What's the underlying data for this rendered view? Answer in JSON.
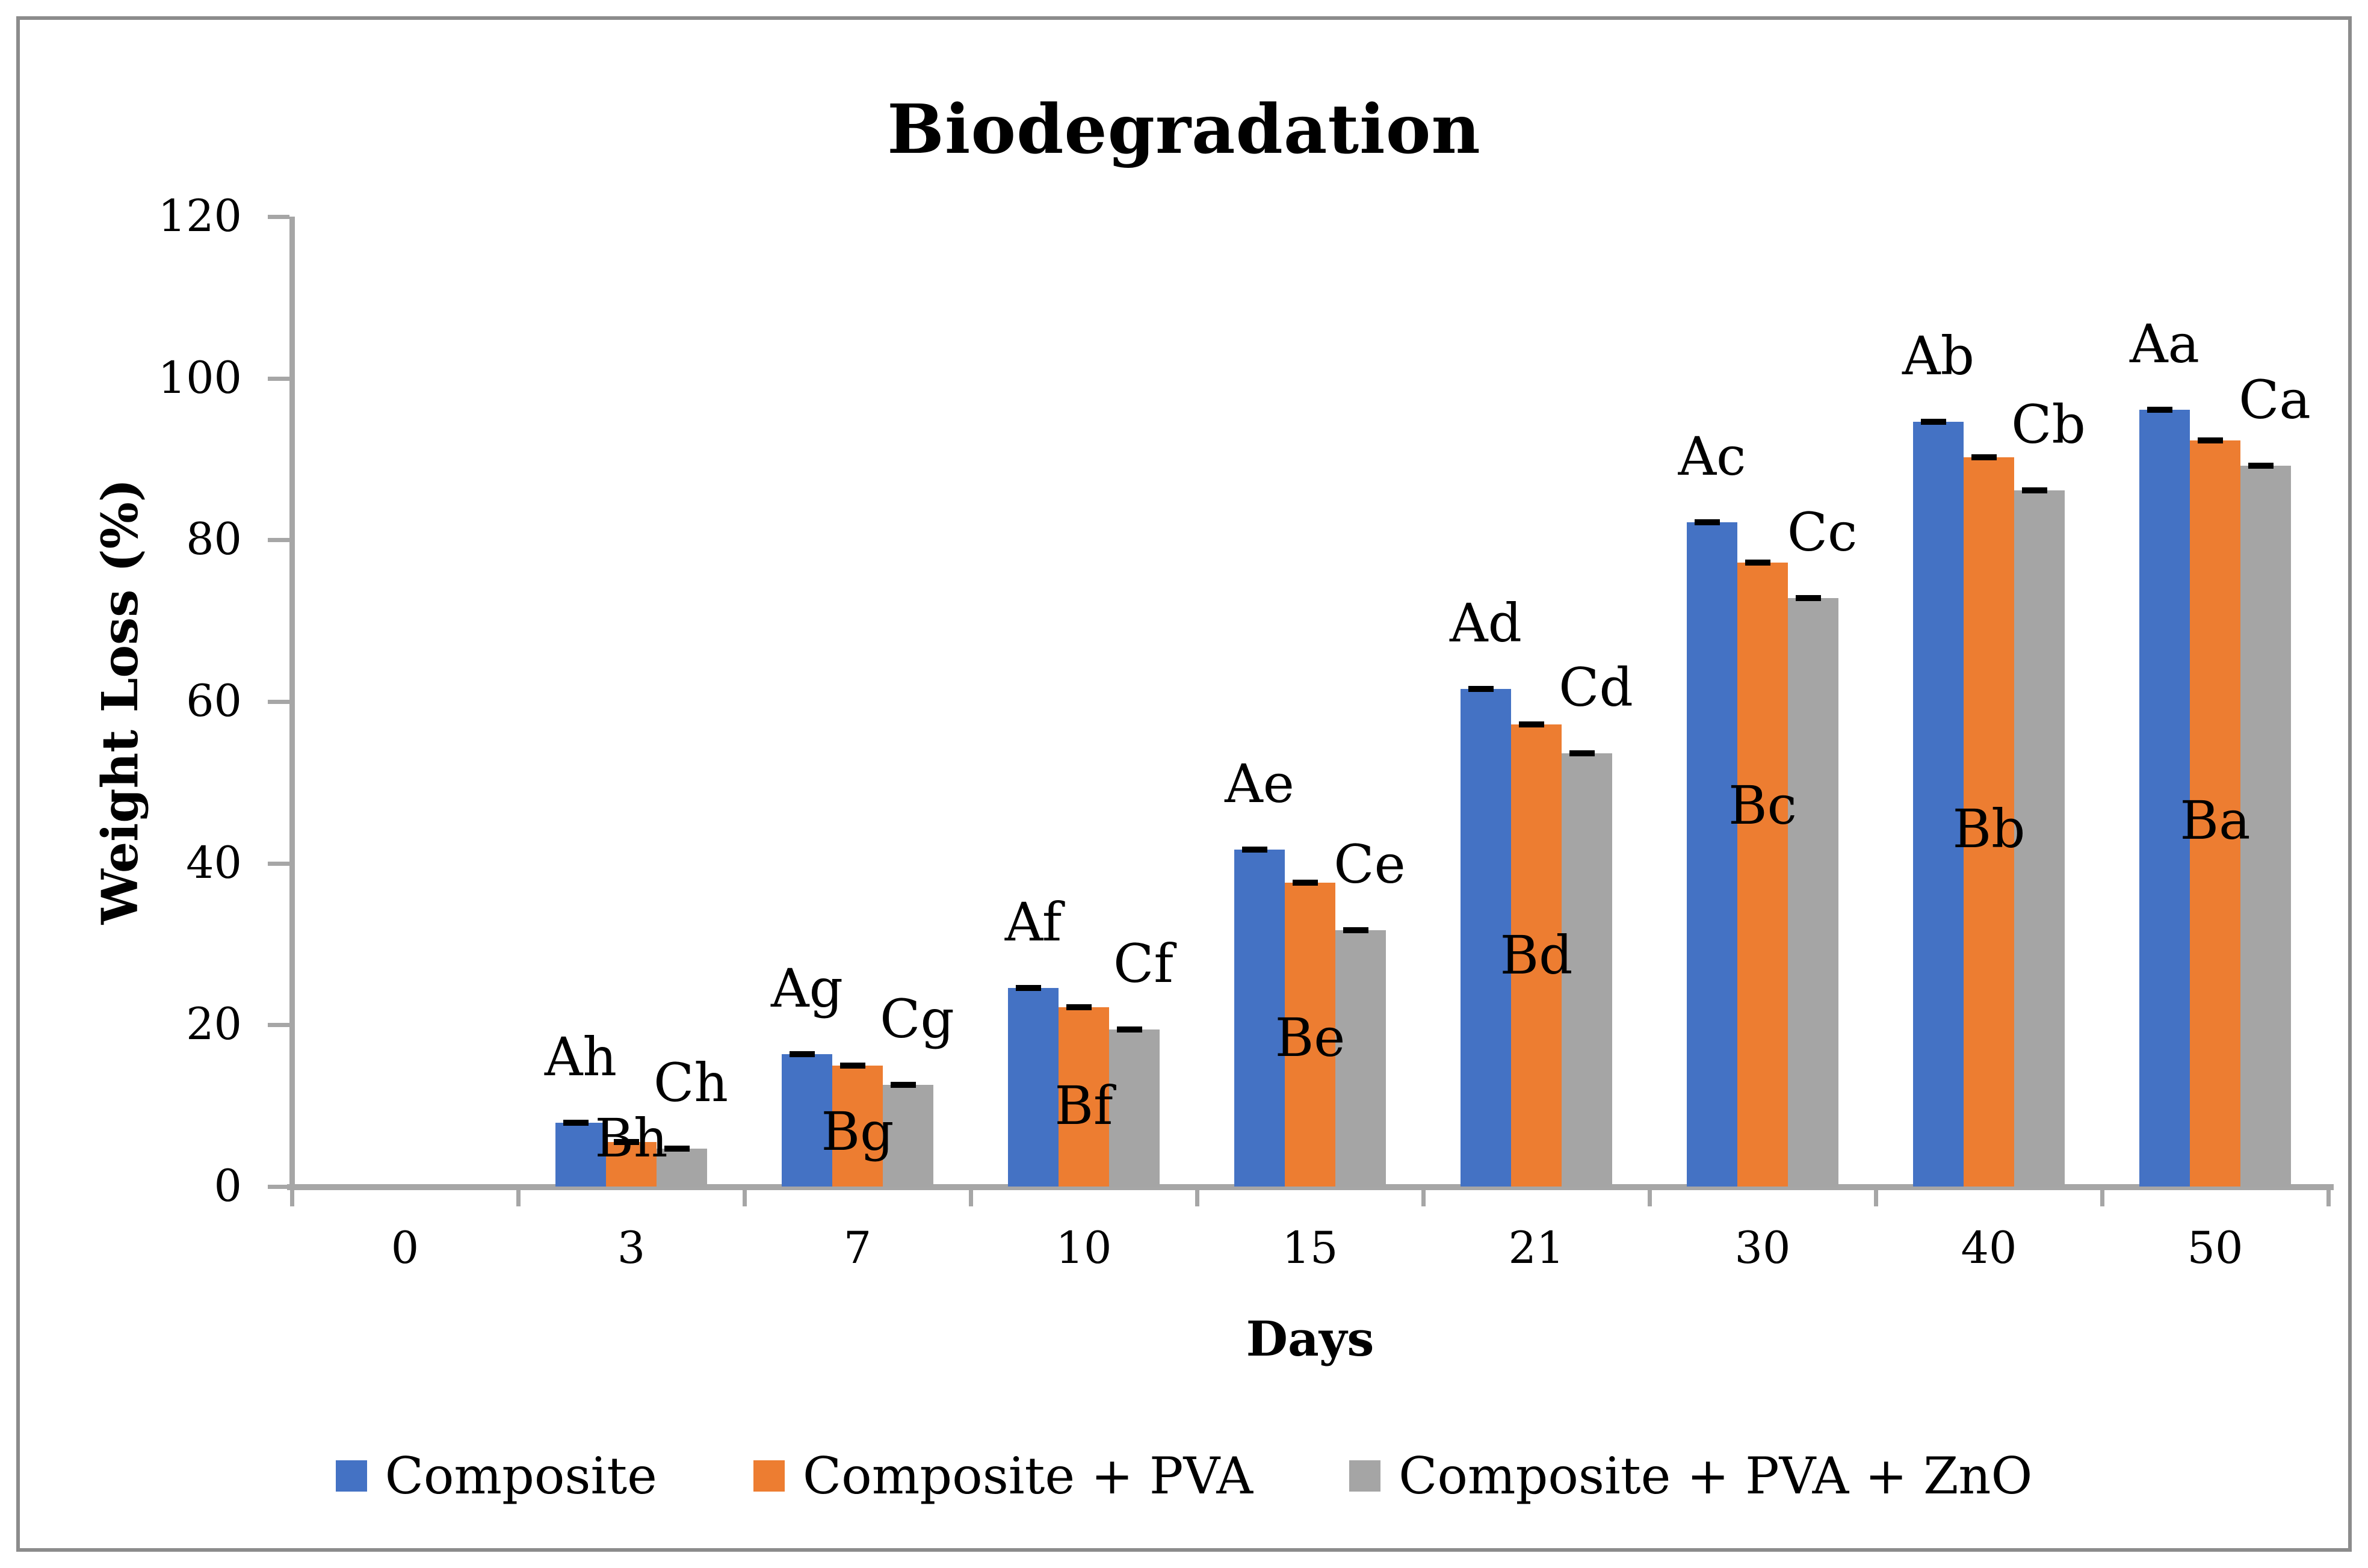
{
  "chart_data": {
    "type": "bar",
    "title": "Biodegradation",
    "xlabel": "Days",
    "ylabel": "Weight Loss (%)",
    "categories": [
      "0",
      "3",
      "7",
      "10",
      "15",
      "21",
      "30",
      "40",
      "50"
    ],
    "y_ticks": [
      0,
      20,
      40,
      60,
      80,
      100,
      120
    ],
    "ylim": [
      0,
      120
    ],
    "grid": false,
    "legend_position": "bottom-center",
    "series": [
      {
        "name": "Composite",
        "color": "#4472C4",
        "values": [
          0,
          7.9,
          16.4,
          24.6,
          41.7,
          61.6,
          82.2,
          94.6,
          96.1
        ]
      },
      {
        "name": "Composite + PVA",
        "color": "#ED7D31",
        "values": [
          0,
          5.5,
          15.0,
          22.2,
          37.6,
          57.2,
          77.2,
          90.2,
          92.3
        ]
      },
      {
        "name": "Composite + PVA + ZnO",
        "color": "#A5A5A5",
        "values": [
          0,
          4.7,
          12.6,
          19.4,
          31.7,
          53.6,
          72.8,
          86.1,
          89.2
        ]
      }
    ],
    "error_bar_caps": true,
    "error_cap_color": "#000000",
    "annotations": [
      {
        "category": "3",
        "series_labels": [
          "Ah",
          "Bh",
          "Ch"
        ],
        "b_center_frac": 1.08
      },
      {
        "category": "7",
        "series_labels": [
          "Ag",
          "Bg",
          "Cg"
        ],
        "b_center_frac": 0.45
      },
      {
        "category": "10",
        "series_labels": [
          "Af",
          "Bf",
          "Cf"
        ],
        "b_center_frac": 0.45
      },
      {
        "category": "15",
        "series_labels": [
          "Ae",
          "Be",
          "Ce"
        ],
        "b_center_frac": 0.49
      },
      {
        "category": "21",
        "series_labels": [
          "Ad",
          "Bd",
          "Cd"
        ],
        "b_center_frac": 0.5
      },
      {
        "category": "30",
        "series_labels": [
          "Ac",
          "Bc",
          "Cc"
        ],
        "b_center_frac": 0.61
      },
      {
        "category": "40",
        "series_labels": [
          "Ab",
          "Bb",
          "Cb"
        ],
        "b_center_frac": 0.49
      },
      {
        "category": "50",
        "series_labels": [
          "Aa",
          "Ba",
          "Ca"
        ],
        "b_center_frac": 0.49
      }
    ],
    "axis_color": "#A6A6A6",
    "text_color": "#000000",
    "border_color": "#8C8C8C",
    "background": "#FFFFFF"
  }
}
